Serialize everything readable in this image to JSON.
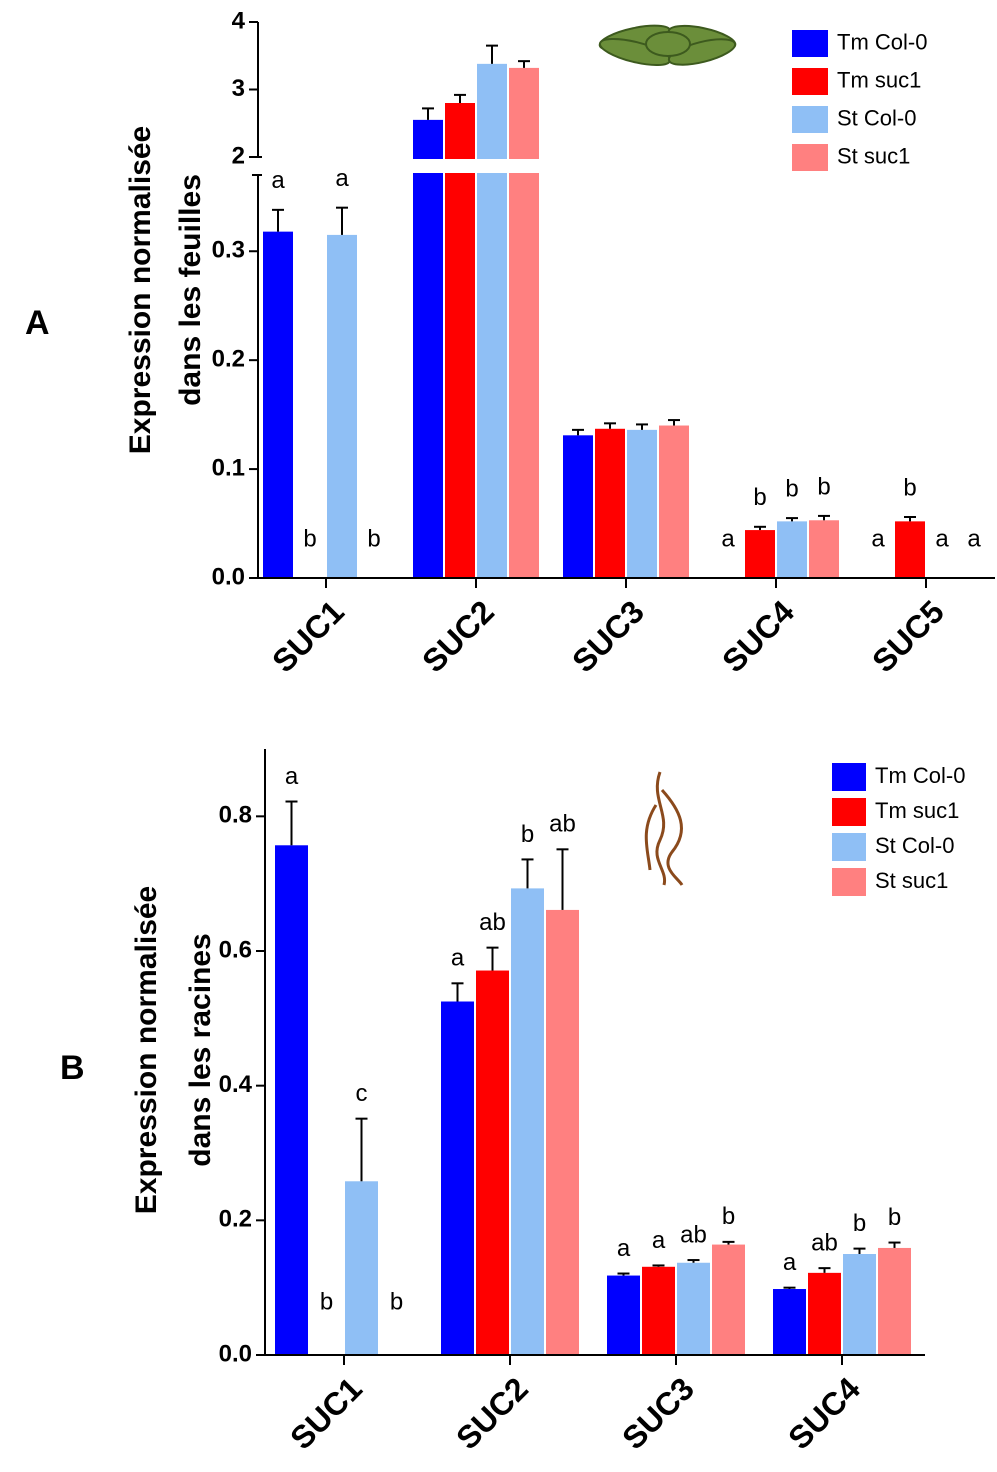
{
  "chart_data": [
    {
      "type": "bar",
      "panel_label": "A",
      "ylabel": [
        "Expression normalisée",
        "dans les feuilles"
      ],
      "categories": [
        "SUC1",
        "SUC2",
        "SUC3",
        "SUC4",
        "SUC5"
      ],
      "series": [
        {
          "name": "Tm Col-0",
          "color": "#0000ff",
          "values": [
            0.318,
            2.55,
            0.131,
            0,
            0
          ],
          "errors": [
            0.02,
            0.17,
            0.005,
            0,
            0
          ],
          "letters": [
            "a",
            null,
            null,
            "a",
            "a"
          ]
        },
        {
          "name": "Tm suc1",
          "color": "#ff0000",
          "values": [
            0,
            2.8,
            0.137,
            0.044,
            0.052
          ],
          "errors": [
            0,
            0.12,
            0.005,
            0.003,
            0.004
          ],
          "letters": [
            "b",
            null,
            null,
            "b",
            "b"
          ]
        },
        {
          "name": "St Col-0",
          "color": "#8fbff5",
          "values": [
            0.315,
            3.38,
            0.136,
            0.052,
            0
          ],
          "errors": [
            0.025,
            0.27,
            0.005,
            0.003,
            0
          ],
          "letters": [
            "a",
            null,
            null,
            "b",
            "a"
          ]
        },
        {
          "name": "St suc1",
          "color": "#ff8080",
          "values": [
            0,
            3.32,
            0.14,
            0.053,
            0
          ],
          "errors": [
            0,
            0.1,
            0.005,
            0.004,
            0
          ],
          "letters": [
            "b",
            null,
            null,
            "b",
            "a"
          ]
        }
      ],
      "ylim": [
        0,
        4
      ],
      "ybreak": [
        0.37,
        2
      ],
      "yticks": [
        {
          "value": 0,
          "label": "0.0"
        },
        0.1,
        0.2,
        0.3,
        2,
        3,
        4
      ]
    },
    {
      "type": "bar",
      "panel_label": "B",
      "ylabel": [
        "Expression normalisée",
        "dans les racines"
      ],
      "categories": [
        "SUC1",
        "SUC2",
        "SUC3",
        "SUC4"
      ],
      "series": [
        {
          "name": "Tm Col-0",
          "color": "#0000ff",
          "values": [
            0.757,
            0.525,
            0.118,
            0.098
          ],
          "errors": [
            0.065,
            0.027,
            0.003,
            0.002
          ],
          "letters": [
            "a",
            "a",
            "a",
            "a"
          ]
        },
        {
          "name": "Tm suc1",
          "color": "#ff0000",
          "values": [
            0,
            0.571,
            0.131,
            0.122
          ],
          "errors": [
            0,
            0.034,
            0.002,
            0.007
          ],
          "letters": [
            "b",
            "ab",
            "a",
            "ab"
          ]
        },
        {
          "name": "St Col-0",
          "color": "#8fbff5",
          "values": [
            0.258,
            0.693,
            0.137,
            0.15
          ],
          "errors": [
            0.093,
            0.043,
            0.004,
            0.008
          ],
          "letters": [
            "c",
            "b",
            "ab",
            "b"
          ]
        },
        {
          "name": "St suc1",
          "color": "#ff8080",
          "values": [
            0,
            0.661,
            0.164,
            0.159
          ],
          "errors": [
            0,
            0.09,
            0.004,
            0.008
          ],
          "letters": [
            "b",
            "ab",
            "b",
            "b"
          ]
        }
      ],
      "ylim": [
        0,
        0.9
      ],
      "yticks": [
        {
          "value": 0,
          "label": "0.0"
        },
        0.2,
        0.4,
        0.6,
        0.8
      ]
    }
  ]
}
